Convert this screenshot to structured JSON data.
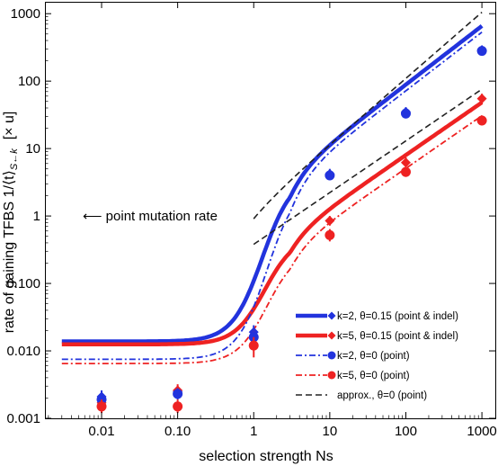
{
  "chart_data": {
    "type": "scatter",
    "xlabel": "selection strength  Ns",
    "ylabel_main": "rate of gaining TFBS 1/⟨t⟩",
    "ylabel_sub": "S←k",
    "ylabel_unit": "[× u]",
    "x_scale": "log",
    "y_scale": "log",
    "xlim": [
      0.0018,
      1500
    ],
    "ylim": [
      0.001,
      1500
    ],
    "x_ticks": [
      {
        "value": 0.01,
        "label": "0.01"
      },
      {
        "value": 0.1,
        "label": "0.10"
      },
      {
        "value": 1,
        "label": "1"
      },
      {
        "value": 10,
        "label": "10"
      },
      {
        "value": 100,
        "label": "100"
      },
      {
        "value": 1000,
        "label": "1000"
      }
    ],
    "y_ticks": [
      {
        "value": 0.001,
        "label": "0.001"
      },
      {
        "value": 0.01,
        "label": "0.010"
      },
      {
        "value": 0.1,
        "label": "0.100"
      },
      {
        "value": 1,
        "label": "1"
      },
      {
        "value": 10,
        "label": "10"
      },
      {
        "value": 100,
        "label": "100"
      },
      {
        "value": 1000,
        "label": "1000"
      }
    ],
    "annotation": {
      "text": "⟵ point mutation rate",
      "y": 1
    },
    "colors": {
      "blue": "#2233dd",
      "red": "#ee2222",
      "black": "#222222"
    },
    "series": [
      {
        "name": "k=2, θ=0.15 (point & indel)",
        "style": "thick",
        "color": "blue",
        "marker": "diamond",
        "line": {
          "low": 0.0138,
          "high": 4.2,
          "mid": 1.3,
          "width": 0.2,
          "slope": 0.87
        },
        "points": [
          {
            "x": 0.01,
            "y": 0.0021,
            "lo": 0.0017,
            "hi": 0.0026
          },
          {
            "x": 0.1,
            "y": 0.0025,
            "lo": 0.0021,
            "hi": 0.003
          },
          {
            "x": 1,
            "y": 0.019,
            "lo": 0.015,
            "hi": 0.024
          },
          {
            "x": 10,
            "y": 4.2,
            "lo": 3.6,
            "hi": 5.0
          },
          {
            "x": 100,
            "y": 35,
            "lo": 30,
            "hi": 41
          },
          {
            "x": 1000,
            "y": 290,
            "lo": 250,
            "hi": 330
          }
        ]
      },
      {
        "name": "k=5, θ=0.15 (point & indel)",
        "style": "thick",
        "color": "red",
        "marker": "diamond",
        "line": {
          "low": 0.0125,
          "high": 0.52,
          "mid": 1.4,
          "width": 0.2,
          "slope": 0.78
        },
        "points": [
          {
            "x": 0.01,
            "y": 0.0017,
            "lo": 0.0014,
            "hi": 0.0021
          },
          {
            "x": 0.1,
            "y": 0.0026,
            "lo": 0.0021,
            "hi": 0.0032
          },
          {
            "x": 1,
            "y": 0.016,
            "lo": 0.013,
            "hi": 0.02
          },
          {
            "x": 10,
            "y": 0.85,
            "lo": 0.72,
            "hi": 1.0
          },
          {
            "x": 100,
            "y": 6.2,
            "lo": 5.3,
            "hi": 7.4
          },
          {
            "x": 1000,
            "y": 55,
            "lo": 46,
            "hi": 65
          }
        ]
      },
      {
        "name": "k=2, θ=0 (point)",
        "style": "dotdash",
        "color": "blue",
        "marker": "circle",
        "line": {
          "low": 0.0075,
          "high": 3.4,
          "mid": 1.5,
          "width": 0.2,
          "slope": 0.87
        },
        "points": [
          {
            "x": 0.01,
            "y": 0.0019,
            "lo": 0.0016,
            "hi": 0.0023
          },
          {
            "x": 0.1,
            "y": 0.0023,
            "lo": 0.0019,
            "hi": 0.0028
          },
          {
            "x": 1,
            "y": 0.016,
            "lo": 0.013,
            "hi": 0.02
          },
          {
            "x": 10,
            "y": 4.0,
            "lo": 3.4,
            "hi": 4.8
          },
          {
            "x": 100,
            "y": 33,
            "lo": 28,
            "hi": 39
          },
          {
            "x": 1000,
            "y": 280,
            "lo": 240,
            "hi": 320
          }
        ]
      },
      {
        "name": "k=5, θ=0 (point)",
        "style": "dotdash",
        "color": "red",
        "marker": "circle",
        "line": {
          "low": 0.0065,
          "high": 0.33,
          "mid": 1.5,
          "width": 0.2,
          "slope": 0.78
        },
        "points": [
          {
            "x": 0.01,
            "y": 0.0015,
            "lo": 0.0012,
            "hi": 0.0019
          },
          {
            "x": 0.1,
            "y": 0.0015,
            "lo": 0.0012,
            "hi": 0.0019
          },
          {
            "x": 1,
            "y": 0.012,
            "lo": 0.008,
            "hi": 0.016
          },
          {
            "x": 10,
            "y": 0.52,
            "lo": 0.42,
            "hi": 0.64
          },
          {
            "x": 100,
            "y": 4.5,
            "lo": 3.8,
            "hi": 5.4
          },
          {
            "x": 1000,
            "y": 26,
            "lo": 22,
            "hi": 31
          }
        ]
      },
      {
        "name": "approx., θ=0 (point)",
        "style": "dashed",
        "color": "black",
        "marker": "none",
        "approx_lines": [
          {
            "x": [
              1,
              1000
            ],
            "y": [
              1.2,
              1050
            ]
          },
          {
            "x": [
              1,
              1000
            ],
            "y": [
              0.38,
              76
            ]
          }
        ]
      }
    ],
    "grid": false,
    "legend_position": "bottom-right"
  }
}
